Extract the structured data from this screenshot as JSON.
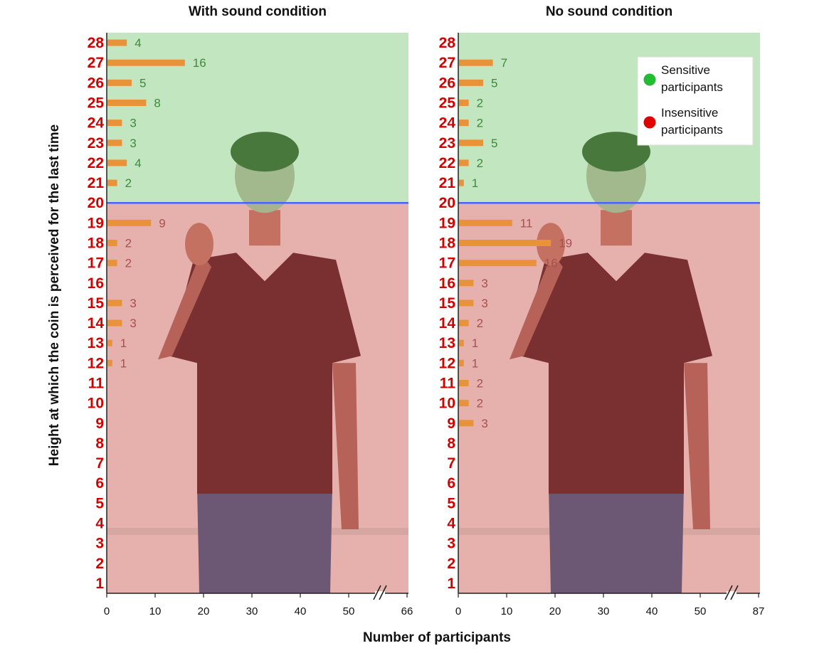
{
  "chart_data": {
    "type": "bar",
    "orientation": "horizontal",
    "ylabel": "Height at which the coin is perceived for the last time",
    "xlabel": "Number of participants",
    "y_ticks": [
      1,
      2,
      3,
      4,
      5,
      6,
      7,
      8,
      9,
      10,
      11,
      12,
      13,
      14,
      15,
      16,
      17,
      18,
      19,
      20,
      21,
      22,
      23,
      24,
      25,
      26,
      27,
      28
    ],
    "x_ticks": [
      "0",
      "10",
      "20",
      "30",
      "40",
      "50"
    ],
    "legend": {
      "placement": "top-right",
      "entries": [
        {
          "label_line1": "Sensitive",
          "label_line2": "participants",
          "color": "#22bb33"
        },
        {
          "label_line1": "Insensitive",
          "label_line2": "participants",
          "color": "#e00000"
        }
      ]
    },
    "threshold": 19.5,
    "colors": {
      "sensitive_region": "#c2e6bf",
      "insensitive_region": "#e6b0ac",
      "bar": "#e8923a",
      "threshold_line": "#4466ff",
      "label_sensitive": "#3d8a3d",
      "label_insensitive": "#a85050"
    },
    "panels": [
      {
        "title": "With sound condition",
        "xlim": [
          0,
          62
        ],
        "axis_break_label": "66",
        "values": {
          "12": 1,
          "13": 1,
          "14": 3,
          "15": 3,
          "17": 2,
          "18": 2,
          "19": 9,
          "21": 2,
          "22": 4,
          "23": 3,
          "24": 3,
          "25": 8,
          "26": 5,
          "27": 16,
          "28": 4
        }
      },
      {
        "title": "No sound condition",
        "xlim": [
          0,
          62
        ],
        "axis_break_label": "87",
        "values": {
          "9": 3,
          "10": 2,
          "11": 2,
          "12": 1,
          "13": 1,
          "14": 2,
          "15": 3,
          "16": 3,
          "17": 16,
          "18": 19,
          "19": 11,
          "21": 1,
          "22": 2,
          "23": 5,
          "24": 2,
          "25": 2,
          "26": 5,
          "27": 7
        }
      }
    ]
  }
}
